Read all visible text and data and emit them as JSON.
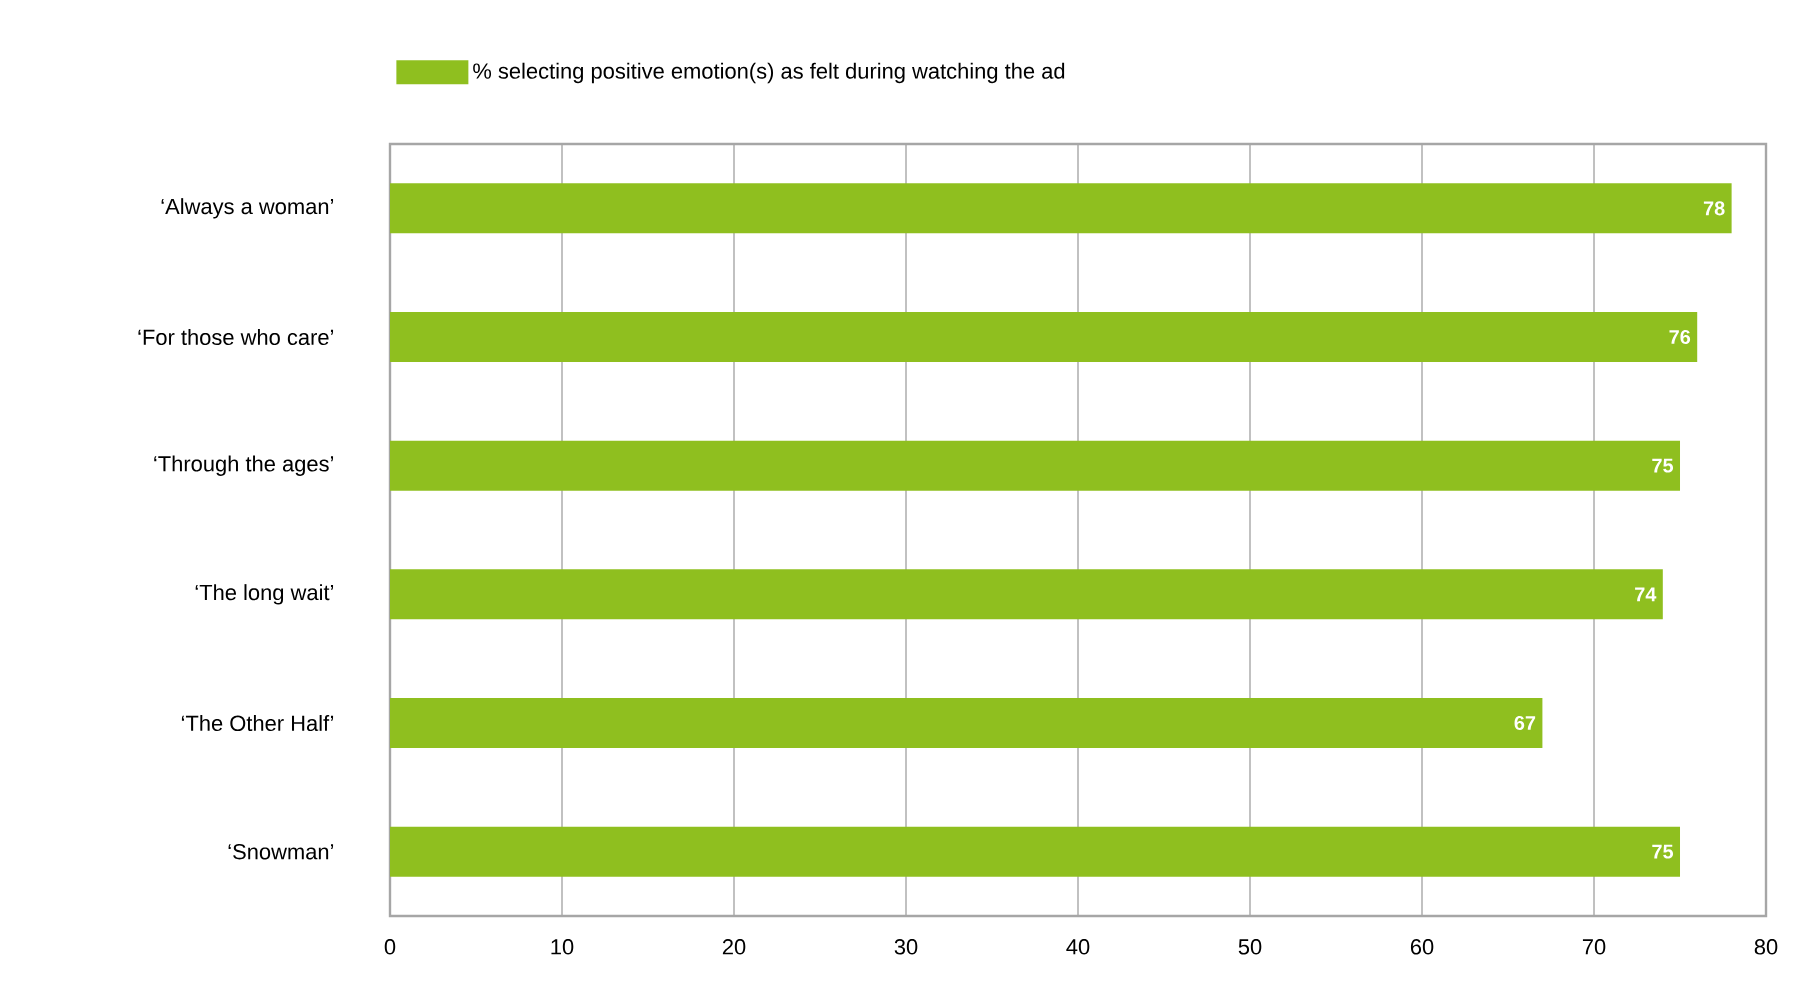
{
  "chart_data": {
    "type": "bar",
    "orientation": "horizontal",
    "categories": [
      "‘Always a woman’",
      "‘For those who care’",
      "‘Through the ages’",
      "‘The long wait’",
      "‘The Other Half’",
      "‘Snowman’"
    ],
    "series": [
      {
        "name": "% selecting positive emotion(s) as felt during watching the ad",
        "color": "#8fbf1f",
        "values": [
          78,
          76,
          75,
          74,
          67,
          75
        ]
      }
    ],
    "xlim": [
      0,
      80
    ],
    "xticks": [
      0,
      10,
      20,
      30,
      40,
      50,
      60,
      70,
      80
    ],
    "grid": "x",
    "legend": "top",
    "data_labels": true
  }
}
